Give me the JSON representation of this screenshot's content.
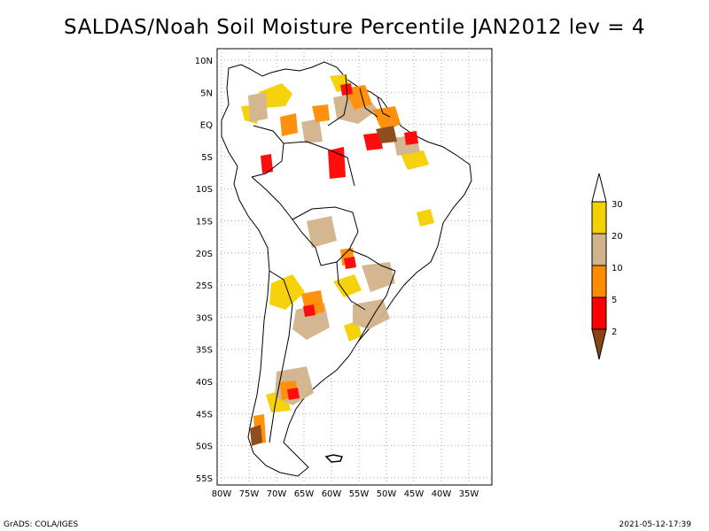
{
  "title": "SALDAS/Noah Soil Moisture Percentile JAN2012 lev = 4",
  "footer": {
    "left": "GrADS: COLA/IGES",
    "right": "2021-05-12-17:39"
  },
  "axes": {
    "lon_labels": [
      "80W",
      "75W",
      "70W",
      "65W",
      "60W",
      "55W",
      "50W",
      "45W",
      "40W",
      "35W"
    ],
    "lat_labels": [
      "10N",
      "5N",
      "EQ",
      "5S",
      "10S",
      "15S",
      "20S",
      "25S",
      "30S",
      "35S",
      "40S",
      "45S",
      "50S",
      "55S"
    ]
  },
  "legend": {
    "labels": [
      "30",
      "20",
      "10",
      "5",
      "2"
    ],
    "colors": {
      "above30": "#ffffff",
      "20-30": "#f5d000",
      "10-20": "#d2b48c",
      "5-10": "#ff8c00",
      "2-5": "#ff0000",
      "below2": "#8b4513"
    }
  },
  "colors": {
    "grid": "#aaaaaa",
    "coast": "#000000"
  }
}
